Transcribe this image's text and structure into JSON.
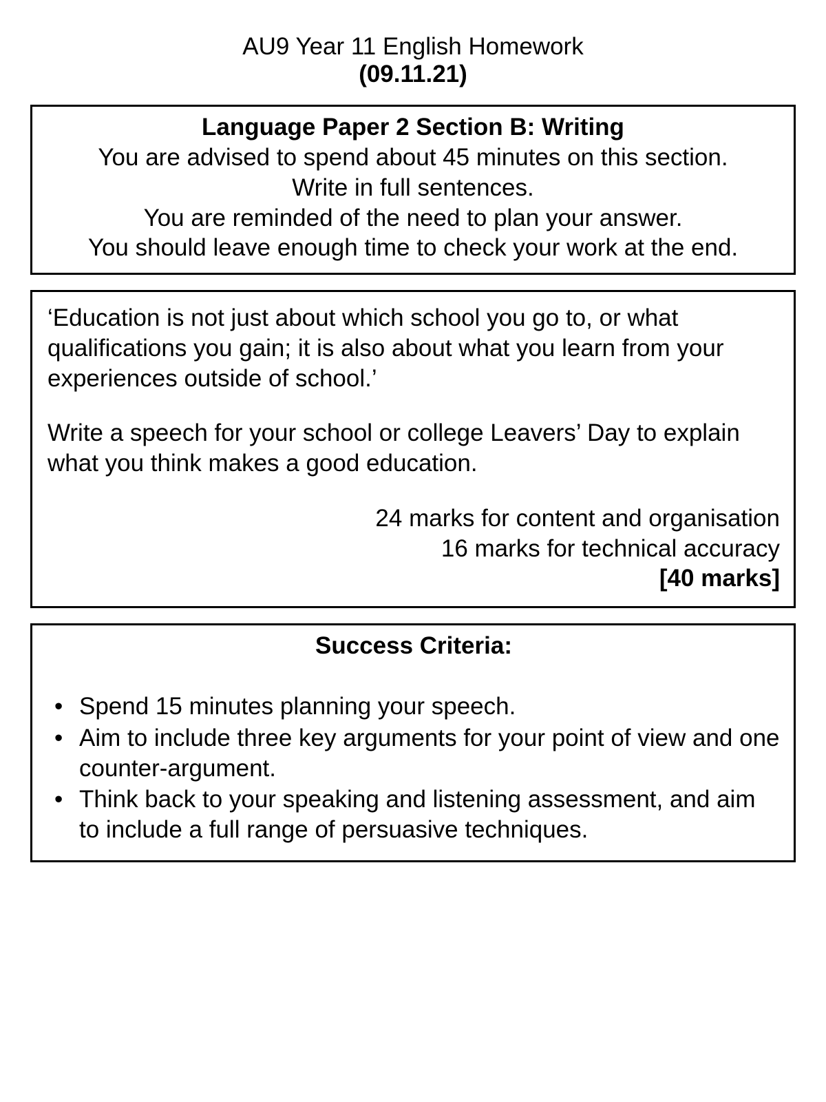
{
  "header": {
    "title": "AU9 Year 11 English Homework",
    "date": "(09.11.21)"
  },
  "instructions": {
    "title": "Language Paper 2 Section B: Writing",
    "line1": "You are advised to spend about 45 minutes on this section.",
    "line2": "Write in full sentences.",
    "line3": "You are reminded of the need to plan your answer.",
    "line4": "You should leave enough time to check your work at the end."
  },
  "task": {
    "quote": "‘Education is not just about which school you go to, or what qualifications you gain; it is also about what you learn from your experiences outside of school.’",
    "prompt": "Write a speech for your school or college Leavers’ Day to explain what you think makes a good education.",
    "marks_content": "24 marks for content and organisation",
    "marks_accuracy": "16 marks for technical accuracy",
    "marks_total": "[40 marks]"
  },
  "criteria": {
    "title": "Success Criteria:",
    "items": [
      "Spend 15 minutes planning your speech.",
      "Aim to include three key arguments for your point of view and one counter-argument.",
      "Think back to your speaking and listening assessment, and aim to include a full range of persuasive techniques."
    ]
  },
  "style": {
    "background_color": "#ffffff",
    "text_color": "#000000",
    "border_color": "#000000",
    "border_width": 3,
    "font_family": "Arial",
    "base_fontsize": 35
  }
}
